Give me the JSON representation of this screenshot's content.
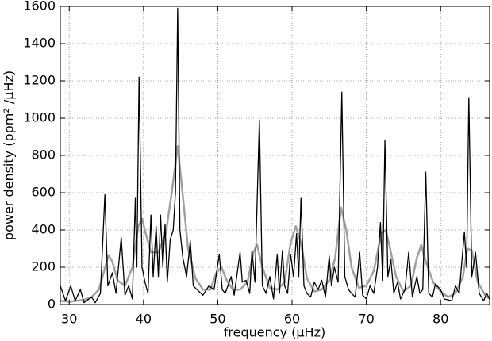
{
  "chart_data": {
    "type": "line",
    "xlabel": "frequency (μHz)",
    "ylabel": "power density (ppm² /μHz)",
    "xlim": [
      28.8,
      86.6
    ],
    "ylim": [
      0,
      1600
    ],
    "xticks": [
      30,
      40,
      50,
      60,
      70,
      80
    ],
    "yticks": [
      0,
      200,
      400,
      600,
      800,
      1000,
      1200,
      1400,
      1600
    ],
    "grid": true,
    "series": [
      {
        "color": "#000000",
        "width": 1.3,
        "x": [
          28.8,
          29.5,
          30.2,
          30.8,
          31.5,
          32,
          33,
          33.5,
          34.2,
          34.8,
          35.2,
          35.8,
          36.3,
          37,
          37.5,
          38,
          38.5,
          38.9,
          39.1,
          39.4,
          39.8,
          40.2,
          40.6,
          41,
          41.3,
          41.7,
          42,
          42.3,
          42.6,
          42.9,
          43.2,
          43.6,
          44,
          44.3,
          44.6,
          44.9,
          45.3,
          45.8,
          46.3,
          46.7,
          47.2,
          48,
          48.8,
          49.5,
          50.2,
          50.6,
          51,
          51.8,
          52.2,
          53,
          53.3,
          53.8,
          54.3,
          54.6,
          55,
          55.6,
          56,
          56.5,
          57,
          57.5,
          58,
          58.3,
          58.7,
          59,
          59.4,
          59.8,
          60.2,
          60.6,
          60.9,
          61.2,
          61.6,
          62,
          62.5,
          63,
          63.5,
          64,
          64.5,
          65,
          65.3,
          65.7,
          66.2,
          66.7,
          67.1,
          67.6,
          68,
          68.5,
          69.1,
          69.5,
          70,
          70.5,
          71,
          71.5,
          71.9,
          72.2,
          72.5,
          72.9,
          73.3,
          73.7,
          74.2,
          74.6,
          75.2,
          75.7,
          76.2,
          76.8,
          77.2,
          77.6,
          78,
          78.4,
          78.9,
          79.3,
          80,
          80.5,
          81.5,
          82,
          82.5,
          83.2,
          83.5,
          83.8,
          84.2,
          84.7,
          85.2,
          85.8,
          86.2,
          86.6
        ],
        "values": [
          100,
          20,
          100,
          20,
          80,
          10,
          40,
          10,
          60,
          590,
          100,
          170,
          60,
          360,
          50,
          100,
          30,
          570,
          200,
          1220,
          200,
          120,
          60,
          480,
          150,
          420,
          150,
          480,
          200,
          430,
          120,
          350,
          400,
          600,
          1590,
          400,
          250,
          150,
          340,
          100,
          80,
          50,
          100,
          80,
          270,
          80,
          60,
          150,
          50,
          280,
          120,
          130,
          60,
          290,
          120,
          990,
          100,
          60,
          150,
          30,
          270,
          60,
          290,
          100,
          60,
          270,
          150,
          380,
          150,
          570,
          100,
          60,
          40,
          120,
          80,
          130,
          40,
          260,
          100,
          200,
          120,
          1140,
          150,
          80,
          60,
          40,
          280,
          50,
          30,
          100,
          60,
          200,
          440,
          130,
          880,
          150,
          240,
          60,
          120,
          30,
          80,
          280,
          40,
          150,
          60,
          80,
          710,
          60,
          40,
          110,
          80,
          30,
          20,
          100,
          60,
          390,
          200,
          1110,
          150,
          280,
          60,
          20,
          60,
          30
        ]
      },
      {
        "color": "#a0a0a0",
        "width": 2.5,
        "x": [
          28.8,
          30,
          31,
          32,
          33,
          34,
          34.7,
          35.3,
          35.8,
          36.5,
          37.5,
          38.5,
          39.3,
          39.8,
          40.3,
          41,
          42,
          43,
          43.8,
          44.6,
          45.2,
          46,
          47,
          48,
          49,
          49.8,
          50.5,
          51.2,
          52,
          53,
          54,
          54.8,
          55.3,
          56,
          57,
          58,
          59,
          59.8,
          60.5,
          61.2,
          62,
          63,
          64,
          65,
          65.8,
          66.6,
          67.3,
          68,
          69,
          70,
          71,
          72,
          72.6,
          73.2,
          74,
          75,
          76,
          76.8,
          77.4,
          78,
          79,
          80,
          81,
          82,
          83,
          83.6,
          84.2,
          85,
          86,
          86.6
        ],
        "values": [
          20,
          15,
          20,
          25,
          40,
          80,
          180,
          265,
          230,
          130,
          100,
          200,
          420,
          460,
          380,
          280,
          280,
          380,
          600,
          850,
          620,
          300,
          140,
          80,
          80,
          170,
          200,
          130,
          80,
          80,
          120,
          280,
          320,
          200,
          90,
          80,
          120,
          330,
          420,
          330,
          140,
          70,
          80,
          130,
          250,
          520,
          400,
          200,
          90,
          100,
          180,
          380,
          400,
          300,
          150,
          70,
          100,
          250,
          320,
          230,
          120,
          70,
          40,
          60,
          150,
          300,
          290,
          120,
          50,
          30
        ]
      }
    ]
  }
}
